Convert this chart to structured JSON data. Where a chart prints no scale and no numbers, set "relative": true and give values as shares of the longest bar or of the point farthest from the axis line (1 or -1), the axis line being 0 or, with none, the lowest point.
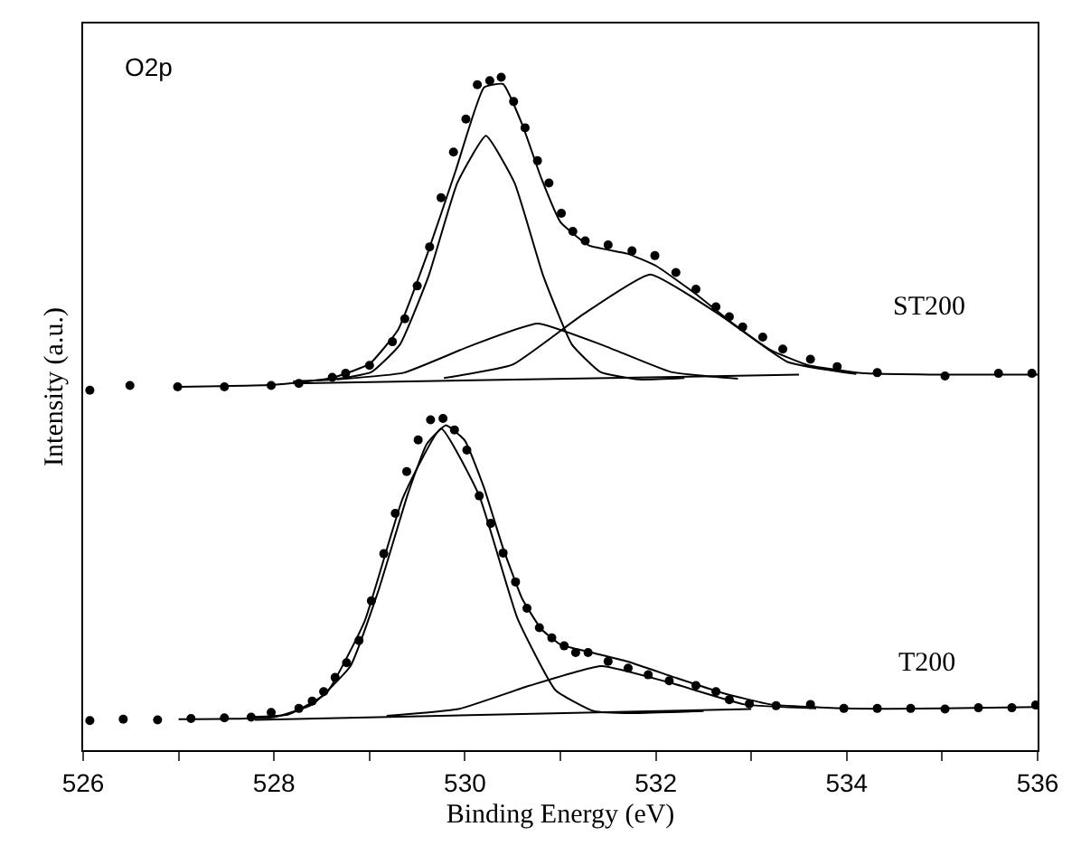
{
  "chart_data": {
    "type": "scatter",
    "relative": true,
    "xlabel": "Binding Energy (eV)",
    "ylabel": "Intensity (a.u.)",
    "xlim": [
      526,
      536
    ],
    "xticks": [
      526,
      {
        "value": 527,
        "label": null
      },
      528,
      {
        "value": 529,
        "label": null
      },
      530,
      {
        "value": 531,
        "label": null
      },
      532,
      {
        "value": 533,
        "label": null
      },
      534,
      {
        "value": 535,
        "label": null
      },
      536
    ],
    "annotations": [
      "O2p",
      "ST200",
      "T200"
    ],
    "series": [
      {
        "marker": "circle",
        "color": "#000000",
        "x": [
          526.07,
          526.49,
          526.99,
          527.48,
          527.97,
          528.26,
          528.61,
          528.75,
          529.0,
          529.24,
          529.37,
          529.5,
          529.63,
          529.75,
          529.88,
          530.01,
          530.13,
          530.26,
          530.38,
          530.51,
          530.63,
          530.76,
          530.88,
          531.01,
          531.13,
          531.26,
          531.5,
          531.75,
          531.99,
          532.21,
          532.42,
          532.63,
          532.77,
          532.91,
          533.12,
          533.33,
          533.62,
          533.9,
          534.32,
          535.03,
          535.59,
          535.94
        ],
        "values": [
          0.535,
          0.542,
          0.54,
          0.54,
          0.542,
          0.545,
          0.554,
          0.56,
          0.572,
          0.607,
          0.641,
          0.69,
          0.748,
          0.821,
          0.889,
          0.938,
          0.989,
          0.995,
          1.0,
          0.964,
          0.925,
          0.876,
          0.843,
          0.798,
          0.771,
          0.757,
          0.751,
          0.742,
          0.735,
          0.71,
          0.685,
          0.659,
          0.644,
          0.629,
          0.614,
          0.596,
          0.581,
          0.57,
          0.561,
          0.556,
          0.56,
          0.56
        ]
      },
      {
        "type": "line",
        "marker": "none",
        "color": "#000000",
        "x": [
          527,
          528,
          528.6,
          529,
          529.3,
          529.6,
          529.9,
          530.2,
          530.4,
          530.6,
          530.8,
          531.0,
          531.3,
          531.7,
          532.0,
          532.4,
          532.8,
          533.2,
          533.6,
          534.2,
          535,
          536
        ],
        "values": [
          0.54,
          0.543,
          0.553,
          0.574,
          0.625,
          0.735,
          0.86,
          0.985,
          0.99,
          0.93,
          0.85,
          0.785,
          0.75,
          0.738,
          0.72,
          0.68,
          0.635,
          0.595,
          0.572,
          0.56,
          0.558,
          0.558
        ]
      },
      {
        "type": "line",
        "marker": "none",
        "color": "#000000",
        "x": [
          528.2,
          528.62,
          529.02,
          529.32,
          529.62,
          529.92,
          530.22,
          530.52,
          530.82,
          531.12,
          531.42,
          531.82,
          532.3
        ],
        "values": [
          0.548,
          0.551,
          0.562,
          0.603,
          0.705,
          0.843,
          0.913,
          0.843,
          0.705,
          0.603,
          0.562,
          0.551,
          0.553
        ]
      },
      {
        "type": "line",
        "marker": "none",
        "color": "#000000",
        "x": [
          528.66,
          529.36,
          530.06,
          530.76,
          531.46,
          532.16,
          532.86
        ],
        "values": [
          0.551,
          0.561,
          0.601,
          0.634,
          0.601,
          0.562,
          0.552
        ]
      },
      {
        "type": "line",
        "marker": "none",
        "color": "#000000",
        "x": [
          529.78,
          530.5,
          531.22,
          531.94,
          532.66,
          533.38,
          534.1
        ],
        "values": [
          0.553,
          0.573,
          0.646,
          0.707,
          0.648,
          0.577,
          0.559
        ]
      },
      {
        "type": "line",
        "marker": "none",
        "color": "#000000",
        "x": [
          528.2,
          533.5
        ],
        "values": [
          0.545,
          0.558
        ]
      },
      {
        "marker": "circle",
        "color": "#000000",
        "x": [
          526.07,
          526.42,
          526.78,
          527.13,
          527.48,
          527.76,
          527.97,
          528.26,
          528.4,
          528.52,
          528.64,
          528.76,
          528.89,
          529.02,
          529.15,
          529.27,
          529.39,
          529.51,
          529.64,
          529.77,
          529.89,
          530.02,
          530.15,
          530.27,
          530.4,
          530.53,
          530.65,
          530.78,
          530.91,
          531.04,
          531.16,
          531.29,
          531.5,
          531.71,
          531.92,
          532.14,
          532.42,
          532.63,
          532.77,
          532.98,
          533.26,
          533.62,
          533.97,
          534.32,
          534.67,
          535.03,
          535.38,
          535.73,
          535.98
        ],
        "values": [
          0.044,
          0.046,
          0.045,
          0.047,
          0.048,
          0.049,
          0.056,
          0.062,
          0.073,
          0.087,
          0.108,
          0.13,
          0.163,
          0.222,
          0.292,
          0.352,
          0.414,
          0.461,
          0.491,
          0.493,
          0.476,
          0.446,
          0.378,
          0.337,
          0.293,
          0.25,
          0.211,
          0.182,
          0.167,
          0.155,
          0.145,
          0.145,
          0.132,
          0.122,
          0.112,
          0.103,
          0.096,
          0.087,
          0.075,
          0.069,
          0.066,
          0.068,
          0.062,
          0.062,
          0.062,
          0.061,
          0.063,
          0.063,
          0.067
        ]
      },
      {
        "type": "line",
        "marker": "none",
        "color": "#000000",
        "x": [
          527,
          528,
          528.4,
          528.8,
          529.1,
          529.4,
          529.6,
          529.8,
          530.0,
          530.2,
          530.4,
          530.6,
          530.8,
          531.0,
          531.3,
          531.7,
          532.2,
          532.7,
          533.2,
          534,
          535,
          536
        ],
        "values": [
          0.046,
          0.049,
          0.068,
          0.125,
          0.24,
          0.38,
          0.455,
          0.483,
          0.46,
          0.39,
          0.3,
          0.225,
          0.18,
          0.157,
          0.146,
          0.132,
          0.108,
          0.085,
          0.068,
          0.062,
          0.062,
          0.064
        ]
      },
      {
        "type": "line",
        "marker": "none",
        "color": "#000000",
        "x": [
          527.75,
          528.15,
          528.55,
          528.95,
          529.35,
          529.75,
          530.15,
          530.55,
          530.95,
          531.35,
          531.75,
          532.5
        ],
        "values": [
          0.049,
          0.053,
          0.085,
          0.192,
          0.375,
          0.478,
          0.378,
          0.196,
          0.089,
          0.058,
          0.055,
          0.058
        ]
      },
      {
        "type": "line",
        "marker": "none",
        "color": "#000000",
        "x": [
          529.18,
          529.93,
          530.68,
          531.43,
          532.18,
          532.93,
          533.68
        ],
        "values": [
          0.051,
          0.061,
          0.096,
          0.125,
          0.099,
          0.068,
          0.062
        ]
      },
      {
        "type": "line",
        "marker": "none",
        "color": "#000000",
        "x": [
          527.8,
          533.0
        ],
        "values": [
          0.045,
          0.061
        ]
      }
    ]
  }
}
